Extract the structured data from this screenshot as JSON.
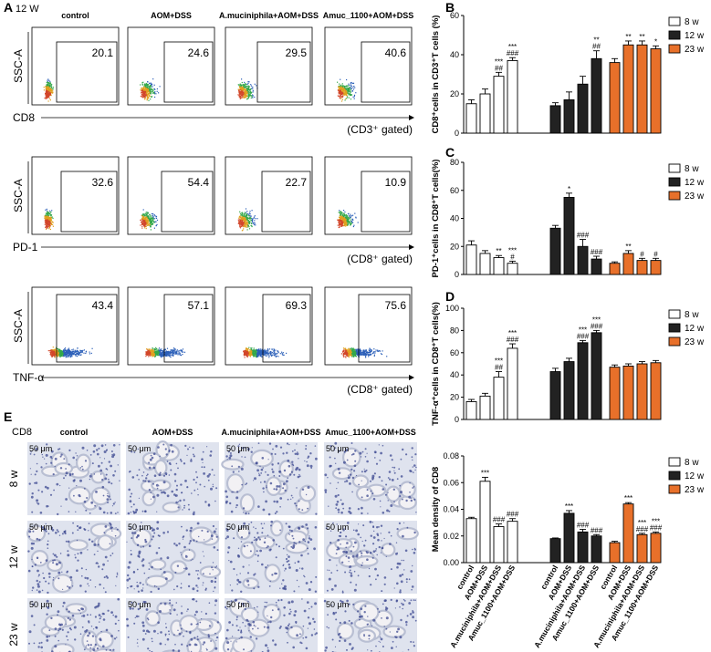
{
  "colors": {
    "bar_8w": "#ffffff",
    "bar_12w": "#222222",
    "bar_23w": "#e8702a",
    "tissue_bg": "#dfe3ee",
    "nucleus": "#3d4a92",
    "stroma": "#b9bfd3"
  },
  "panel_labels": {
    "A": "A",
    "B": "B",
    "C": "C",
    "D": "D",
    "E": "E"
  },
  "flow": {
    "timepoint": "12 W",
    "groups": [
      "control",
      "AOM+DSS",
      "A.muciniphila+AOM+DSS",
      "Amuc_1100+AOM+DSS"
    ],
    "rows": [
      {
        "ylabel": "SSC-A",
        "xlabel": "CD8",
        "gate": "(CD3⁺ gated)",
        "values": [
          "20.1",
          "24.6",
          "29.5",
          "40.6"
        ]
      },
      {
        "ylabel": "SSC-A",
        "xlabel": "PD-1",
        "gate": "(CD8⁺ gated)",
        "values": [
          "32.6",
          "54.4",
          "22.7",
          "10.9"
        ]
      },
      {
        "ylabel": "SSC-A",
        "xlabel": "TNF-α",
        "gate": "(CD8⁺ gated)",
        "values": [
          "43.4",
          "57.1",
          "69.3",
          "75.6"
        ]
      }
    ]
  },
  "ihc": {
    "stain": "CD8",
    "groups": [
      "control",
      "AOM+DSS",
      "A.muciniphila+AOM+DSS",
      "Amuc_1100+AOM+DSS"
    ],
    "rows": [
      "8 w",
      "12 w",
      "23 w"
    ],
    "scale": "50 μm"
  },
  "chart_data": [
    {
      "type": "bar",
      "panel": "B",
      "ylabel": "CD8⁺cells in CD3⁺T cells (%)",
      "ylim": [
        0,
        60
      ],
      "yticks": [
        0,
        20,
        40,
        60
      ],
      "legend": [
        "8 w",
        "12 w",
        "23 w"
      ],
      "series": [
        {
          "name": "8 w",
          "values": [
            15,
            20,
            29,
            37
          ],
          "errors": [
            2,
            2.5,
            2,
            1.5
          ],
          "marks": [
            "",
            "",
            "***\n##",
            "***\n###"
          ]
        },
        {
          "name": "12 w",
          "values": [
            14,
            17,
            25,
            38
          ],
          "errors": [
            1.5,
            4,
            4,
            4
          ],
          "marks": [
            "",
            "",
            "",
            "**\n##"
          ]
        },
        {
          "name": "23 w",
          "values": [
            36,
            45,
            45,
            43
          ],
          "errors": [
            2,
            2,
            2,
            1.5
          ],
          "marks": [
            "",
            "**",
            "**",
            "*"
          ]
        }
      ]
    },
    {
      "type": "bar",
      "panel": "C",
      "ylabel": "PD-1⁺cells in CD8⁺T cells(%)",
      "ylim": [
        0,
        80
      ],
      "yticks": [
        0,
        20,
        40,
        60,
        80
      ],
      "legend": [
        "8 w",
        "12 w",
        "23 w"
      ],
      "series": [
        {
          "name": "8 w",
          "values": [
            21,
            15,
            12,
            8
          ],
          "errors": [
            3,
            2,
            1.5,
            1.5
          ],
          "marks": [
            "",
            "",
            "**",
            "***\n#"
          ]
        },
        {
          "name": "12 w",
          "values": [
            33,
            55,
            20,
            11
          ],
          "errors": [
            2,
            3,
            5,
            2
          ],
          "marks": [
            "",
            "*",
            "###",
            "###"
          ]
        },
        {
          "name": "23 w",
          "values": [
            8,
            15,
            10,
            10
          ],
          "errors": [
            1,
            2,
            1.5,
            1.5
          ],
          "marks": [
            "",
            "**",
            "#",
            "#"
          ]
        }
      ]
    },
    {
      "type": "bar",
      "panel": "D",
      "ylabel": "TNF-α⁺cells in CD8⁺T cells(%)",
      "ylim": [
        0,
        100
      ],
      "yticks": [
        0,
        20,
        40,
        60,
        80,
        100
      ],
      "legend": [
        "8 w",
        "12 w",
        "23 w"
      ],
      "series": [
        {
          "name": "8 w",
          "values": [
            16,
            21,
            38,
            64
          ],
          "errors": [
            2,
            2.5,
            5,
            4
          ],
          "marks": [
            "",
            "",
            "***\n##",
            "***\n###"
          ]
        },
        {
          "name": "12 w",
          "values": [
            43,
            52,
            69,
            78
          ],
          "errors": [
            3,
            3,
            2,
            2
          ],
          "marks": [
            "",
            "",
            "***\n###",
            "***\n###"
          ]
        },
        {
          "name": "23 w",
          "values": [
            47,
            48,
            50,
            51
          ],
          "errors": [
            2,
            2,
            2,
            2
          ],
          "marks": [
            "",
            "",
            "",
            ""
          ]
        }
      ]
    },
    {
      "type": "bar",
      "panel": "E-quant",
      "ylabel": "Mean density of CD8",
      "ylim": [
        0,
        0.08
      ],
      "yticks": [
        "0.00",
        "0.02",
        "0.04",
        "0.06",
        "0.08"
      ],
      "legend": [
        "8 w",
        "12 w",
        "23 w"
      ],
      "categories": [
        "control",
        "AOM+DSS",
        "A.muciniphila+AOM+DSS",
        "Amuc_1100+AOM+DSS"
      ],
      "series": [
        {
          "name": "8 w",
          "values": [
            0.033,
            0.061,
            0.027,
            0.031
          ],
          "errors": [
            0.001,
            0.003,
            0.002,
            0.002
          ],
          "marks": [
            "",
            "***",
            "###",
            "###"
          ]
        },
        {
          "name": "12 w",
          "values": [
            0.018,
            0.037,
            0.023,
            0.02
          ],
          "errors": [
            0.0005,
            0.002,
            0.002,
            0.001
          ],
          "marks": [
            "",
            "***",
            "###",
            "###"
          ]
        },
        {
          "name": "23 w",
          "values": [
            0.015,
            0.044,
            0.021,
            0.022
          ],
          "errors": [
            0.001,
            0.001,
            0.001,
            0.001
          ],
          "marks": [
            "",
            "***",
            "***\n###",
            "***\n###"
          ]
        }
      ]
    }
  ]
}
